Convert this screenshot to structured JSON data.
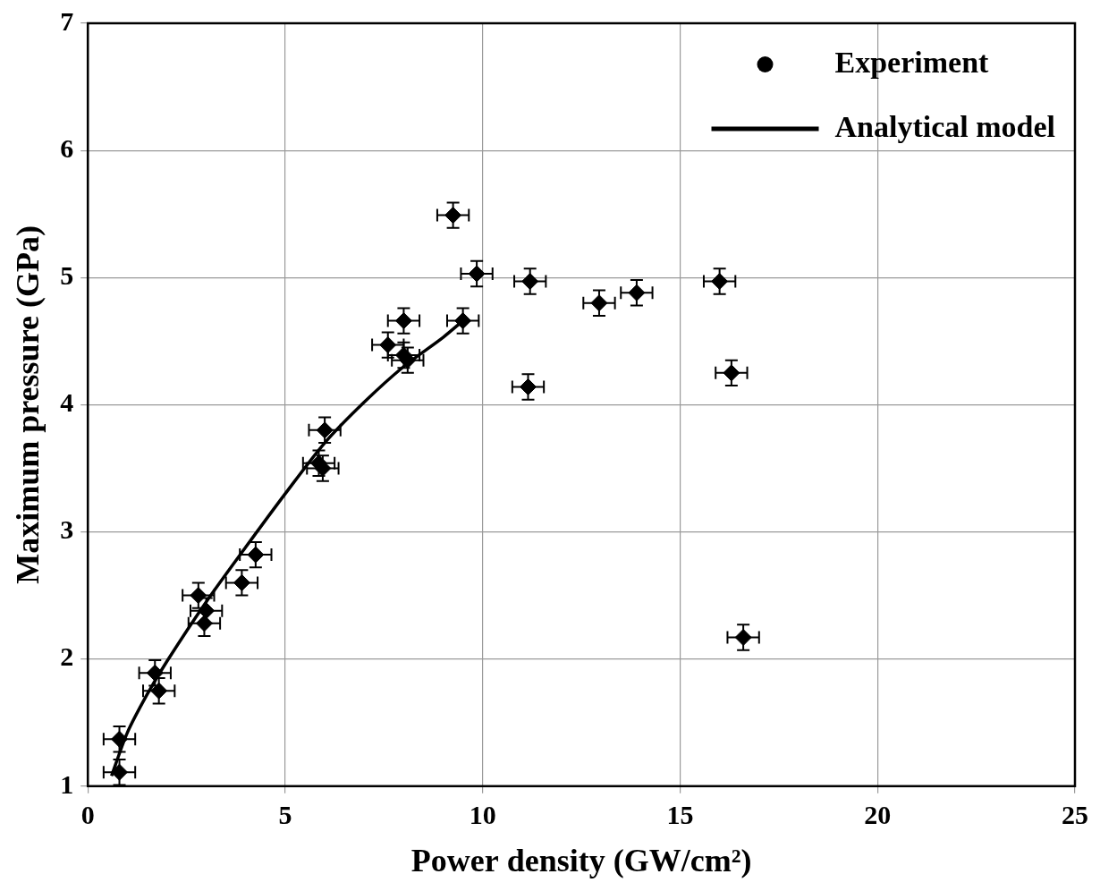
{
  "chart_data": {
    "type": "scatter",
    "x_label": "Power density (GW/cm²)",
    "y_label": "Maximum pressure (GPa)",
    "xlim": [
      0,
      25
    ],
    "xticks": [
      0,
      5,
      10,
      15,
      20,
      25
    ],
    "ylim": [
      1,
      7
    ],
    "yticks": [
      1,
      2,
      3,
      4,
      5,
      6,
      7
    ],
    "grid": true,
    "legend": "upper right",
    "series": [
      {
        "name": "Experiment",
        "type": "scatter",
        "marker": "diamond",
        "color": "#000000",
        "x": [
          0.8,
          0.8,
          1.7,
          1.8,
          2.8,
          3.0,
          2.95,
          3.9,
          4.25,
          5.85,
          5.95,
          6.0,
          7.6,
          8.0,
          8.1,
          8.0,
          9.25,
          9.5,
          9.85,
          11.2,
          11.15,
          12.95,
          13.9,
          16.0,
          16.3,
          16.6
        ],
        "values": [
          1.37,
          1.11,
          1.89,
          1.75,
          2.5,
          2.38,
          2.28,
          2.6,
          2.82,
          3.54,
          3.5,
          3.8,
          4.47,
          4.66,
          4.35,
          4.39,
          5.49,
          4.66,
          5.03,
          4.97,
          4.14,
          4.8,
          4.88,
          4.97,
          4.25,
          2.17
        ],
        "x_error": [
          0.4,
          0.4,
          0.4,
          0.4,
          0.4,
          0.4,
          0.4,
          0.4,
          0.4,
          0.4,
          0.4,
          0.4,
          0.4,
          0.4,
          0.4,
          0.4,
          0.4,
          0.4,
          0.4,
          0.4,
          0.4,
          0.4,
          0.4,
          0.4,
          0.4,
          0.4
        ],
        "y_error": [
          0.1,
          0.1,
          0.1,
          0.1,
          0.1,
          0.1,
          0.1,
          0.1,
          0.1,
          0.1,
          0.1,
          0.1,
          0.1,
          0.1,
          0.1,
          0.1,
          0.1,
          0.1,
          0.1,
          0.1,
          0.1,
          0.1,
          0.1,
          0.1,
          0.1,
          0.1
        ]
      },
      {
        "name": "Analytical model",
        "type": "line",
        "line_style": "solid",
        "color": "#000000",
        "x": [
          0.6,
          1,
          1.5,
          2,
          3,
          4,
          5,
          6,
          7,
          8,
          9,
          9.5
        ],
        "values": [
          1.08,
          1.42,
          1.72,
          1.98,
          2.45,
          2.88,
          3.3,
          3.7,
          4.02,
          4.3,
          4.53,
          4.66
        ]
      }
    ]
  }
}
